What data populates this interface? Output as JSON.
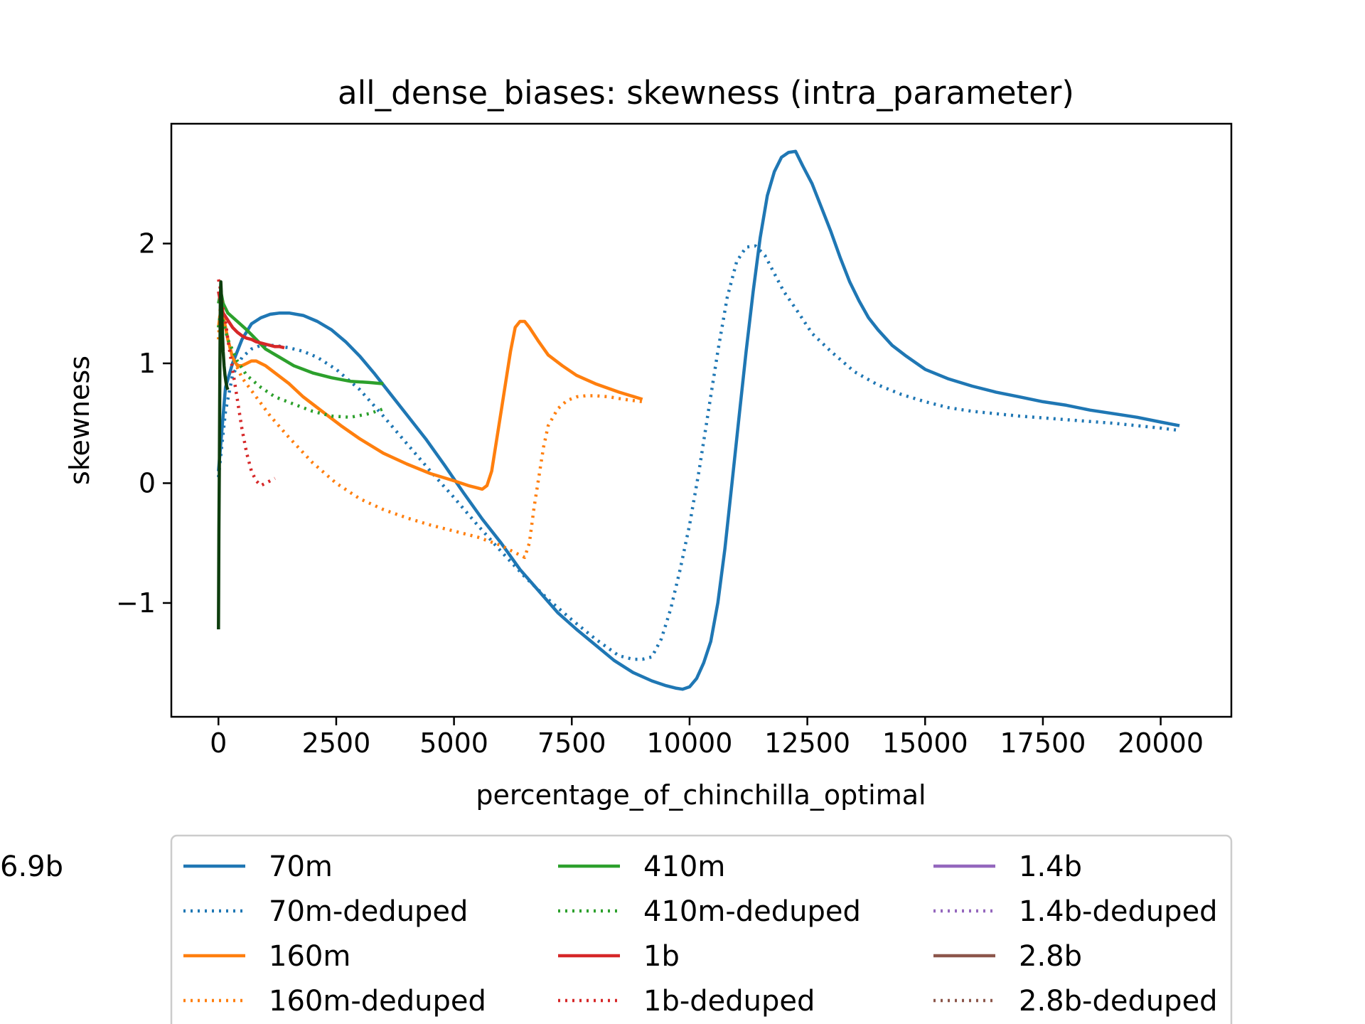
{
  "chart_data": {
    "type": "line",
    "title": "all_dense_biases: skewness (intra_parameter)",
    "xlabel": "percentage_of_chinchilla_optimal",
    "ylabel": "skewness",
    "xlim": [
      -1000,
      21500
    ],
    "ylim": [
      -1.95,
      3.0
    ],
    "xticks": [
      0,
      2500,
      5000,
      7500,
      10000,
      12500,
      15000,
      17500,
      20000
    ],
    "xtick_labels": [
      "0",
      "2500",
      "5000",
      "7500",
      "10000",
      "12500",
      "15000",
      "17500",
      "20000"
    ],
    "yticks": [
      -1,
      0,
      1,
      2
    ],
    "ytick_labels": [
      "−1",
      "0",
      "1",
      "2"
    ],
    "grid": false,
    "legend_position": "below plot, 3 columns",
    "series": [
      {
        "name": "70m",
        "color": "#1f77b4",
        "dash": "solid",
        "x": [
          0,
          150,
          300,
          500,
          700,
          900,
          1100,
          1300,
          1500,
          1800,
          2100,
          2400,
          2700,
          3000,
          3300,
          3600,
          4000,
          4400,
          4800,
          5200,
          5600,
          6000,
          6400,
          6800,
          7200,
          7600,
          8000,
          8400,
          8800,
          9200,
          9500,
          9700,
          9850,
          10000,
          10150,
          10300,
          10450,
          10600,
          10750,
          10900,
          11050,
          11200,
          11350,
          11500,
          11650,
          11800,
          11950,
          12100,
          12250,
          12400,
          12600,
          12800,
          13000,
          13200,
          13400,
          13600,
          13800,
          14000,
          14300,
          14600,
          15000,
          15500,
          16000,
          16500,
          17000,
          17500,
          18000,
          18500,
          19000,
          19500,
          20000,
          20400
        ],
        "y": [
          0.1,
          0.8,
          1.0,
          1.2,
          1.33,
          1.38,
          1.41,
          1.42,
          1.42,
          1.4,
          1.35,
          1.28,
          1.18,
          1.06,
          0.92,
          0.77,
          0.57,
          0.37,
          0.15,
          -0.08,
          -0.3,
          -0.5,
          -0.72,
          -0.9,
          -1.08,
          -1.22,
          -1.35,
          -1.48,
          -1.58,
          -1.65,
          -1.69,
          -1.71,
          -1.72,
          -1.7,
          -1.63,
          -1.5,
          -1.32,
          -1.0,
          -0.55,
          0.0,
          0.55,
          1.1,
          1.6,
          2.05,
          2.4,
          2.6,
          2.72,
          2.76,
          2.77,
          2.65,
          2.5,
          2.3,
          2.1,
          1.88,
          1.68,
          1.52,
          1.38,
          1.28,
          1.15,
          1.06,
          0.95,
          0.87,
          0.81,
          0.76,
          0.72,
          0.68,
          0.65,
          0.61,
          0.58,
          0.55,
          0.51,
          0.48
        ]
      },
      {
        "name": "70m-deduped",
        "color": "#1f77b4",
        "dash": "dotted",
        "x": [
          0,
          150,
          300,
          500,
          700,
          900,
          1200,
          1500,
          1800,
          2100,
          2500,
          3000,
          3500,
          4000,
          4500,
          5000,
          5500,
          6000,
          6500,
          7000,
          7500,
          8000,
          8500,
          8800,
          9000,
          9200,
          9400,
          9600,
          9800,
          10000,
          10200,
          10400,
          10600,
          10800,
          11000,
          11200,
          11400,
          11600,
          11800,
          12000,
          12300,
          12600,
          13000,
          13500,
          14000,
          14500,
          15000,
          15500,
          16000,
          17000,
          18000,
          19000,
          20000,
          20400
        ],
        "y": [
          0.05,
          0.6,
          0.9,
          1.05,
          1.12,
          1.15,
          1.15,
          1.13,
          1.1,
          1.05,
          0.95,
          0.78,
          0.56,
          0.33,
          0.1,
          -0.12,
          -0.35,
          -0.57,
          -0.78,
          -0.97,
          -1.14,
          -1.3,
          -1.44,
          -1.47,
          -1.47,
          -1.45,
          -1.3,
          -1.05,
          -0.72,
          -0.35,
          0.1,
          0.6,
          1.1,
          1.55,
          1.85,
          1.97,
          1.98,
          1.9,
          1.75,
          1.6,
          1.43,
          1.25,
          1.1,
          0.93,
          0.82,
          0.74,
          0.68,
          0.63,
          0.6,
          0.56,
          0.53,
          0.5,
          0.46,
          0.44
        ]
      },
      {
        "name": "160m",
        "color": "#ff7f0e",
        "dash": "solid",
        "x": [
          0,
          50,
          100,
          200,
          300,
          400,
          500,
          600,
          700,
          800,
          900,
          1000,
          1200,
          1500,
          1800,
          2200,
          2600,
          3000,
          3500,
          4000,
          4500,
          5000,
          5300,
          5500,
          5600,
          5700,
          5800,
          6000,
          6200,
          6300,
          6400,
          6500,
          6600,
          6800,
          7000,
          7300,
          7600,
          8000,
          8500,
          9000
        ],
        "y": [
          1.3,
          1.45,
          1.4,
          1.2,
          1.05,
          0.98,
          0.98,
          1.0,
          1.02,
          1.02,
          1.0,
          0.98,
          0.92,
          0.83,
          0.72,
          0.6,
          0.48,
          0.37,
          0.25,
          0.16,
          0.08,
          0.02,
          -0.02,
          -0.04,
          -0.05,
          -0.02,
          0.1,
          0.6,
          1.1,
          1.3,
          1.35,
          1.35,
          1.3,
          1.18,
          1.07,
          0.98,
          0.9,
          0.83,
          0.76,
          0.7
        ]
      },
      {
        "name": "160m-deduped",
        "color": "#ff7f0e",
        "dash": "dotted",
        "x": [
          0,
          50,
          100,
          200,
          300,
          500,
          800,
          1100,
          1500,
          2000,
          2500,
          3000,
          3500,
          4000,
          4500,
          5000,
          5500,
          6000,
          6300,
          6500,
          6600,
          6700,
          6800,
          6900,
          7000,
          7200,
          7400,
          7600,
          7800,
          8000,
          8300,
          8600,
          9000
        ],
        "y": [
          1.2,
          1.55,
          1.4,
          1.2,
          1.05,
          0.88,
          0.72,
          0.56,
          0.38,
          0.17,
          -0.0,
          -0.13,
          -0.22,
          -0.29,
          -0.35,
          -0.4,
          -0.45,
          -0.52,
          -0.58,
          -0.62,
          -0.5,
          -0.2,
          0.05,
          0.3,
          0.48,
          0.62,
          0.69,
          0.72,
          0.73,
          0.73,
          0.72,
          0.7,
          0.68
        ]
      },
      {
        "name": "410m",
        "color": "#2ca02c",
        "dash": "solid",
        "x": [
          0,
          50,
          100,
          200,
          400,
          600,
          800,
          1000,
          1300,
          1600,
          2000,
          2400,
          2800,
          3200,
          3500
        ],
        "y": [
          1.5,
          1.6,
          1.5,
          1.42,
          1.35,
          1.28,
          1.2,
          1.12,
          1.05,
          0.98,
          0.92,
          0.88,
          0.85,
          0.84,
          0.83
        ]
      },
      {
        "name": "410m-deduped",
        "color": "#2ca02c",
        "dash": "dotted",
        "x": [
          0,
          50,
          100,
          200,
          400,
          600,
          900,
          1200,
          1600,
          2000,
          2400,
          2800,
          3200,
          3500
        ],
        "y": [
          1.3,
          1.45,
          1.35,
          1.2,
          1.02,
          0.9,
          0.8,
          0.72,
          0.66,
          0.6,
          0.56,
          0.55,
          0.58,
          0.62
        ]
      },
      {
        "name": "1b",
        "color": "#d62728",
        "dash": "solid",
        "x": [
          0,
          50,
          100,
          200,
          300,
          400,
          500,
          600,
          700,
          800,
          900,
          1000,
          1100,
          1200,
          1300,
          1400
        ],
        "y": [
          1.6,
          1.5,
          1.42,
          1.36,
          1.3,
          1.26,
          1.23,
          1.21,
          1.2,
          1.18,
          1.17,
          1.16,
          1.15,
          1.14,
          1.14,
          1.13
        ]
      },
      {
        "name": "1b-deduped",
        "color": "#d62728",
        "dash": "dotted",
        "x": [
          0,
          30,
          60,
          100,
          150,
          200,
          300,
          400,
          500,
          600,
          700,
          800,
          900,
          1000,
          1100,
          1200
        ],
        "y": [
          1.7,
          1.65,
          1.55,
          1.45,
          1.35,
          1.2,
          0.95,
          0.7,
          0.45,
          0.25,
          0.1,
          0.02,
          -0.02,
          0.0,
          0.02,
          0.04
        ]
      },
      {
        "name": "1.4b",
        "color": "#9467bd",
        "dash": "solid",
        "x": [],
        "y": []
      },
      {
        "name": "1.4b-deduped",
        "color": "#9467bd",
        "dash": "dotted",
        "x": [],
        "y": []
      },
      {
        "name": "2.8b",
        "color": "#8c564b",
        "dash": "solid",
        "x": [],
        "y": []
      },
      {
        "name": "2.8b-deduped",
        "color": "#8c564b",
        "dash": "dotted",
        "x": [],
        "y": []
      },
      {
        "name": "6.9b",
        "color": "#0d3d0d",
        "dash": "solid",
        "x": [
          0,
          10,
          20,
          30,
          40,
          50,
          60,
          70,
          80,
          100,
          120,
          140,
          160,
          180,
          200
        ],
        "y": [
          -1.22,
          -0.4,
          0.2,
          1.0,
          1.5,
          1.68,
          1.6,
          1.45,
          1.3,
          1.1,
          0.98,
          0.9,
          0.84,
          0.8,
          0.78
        ]
      }
    ]
  }
}
